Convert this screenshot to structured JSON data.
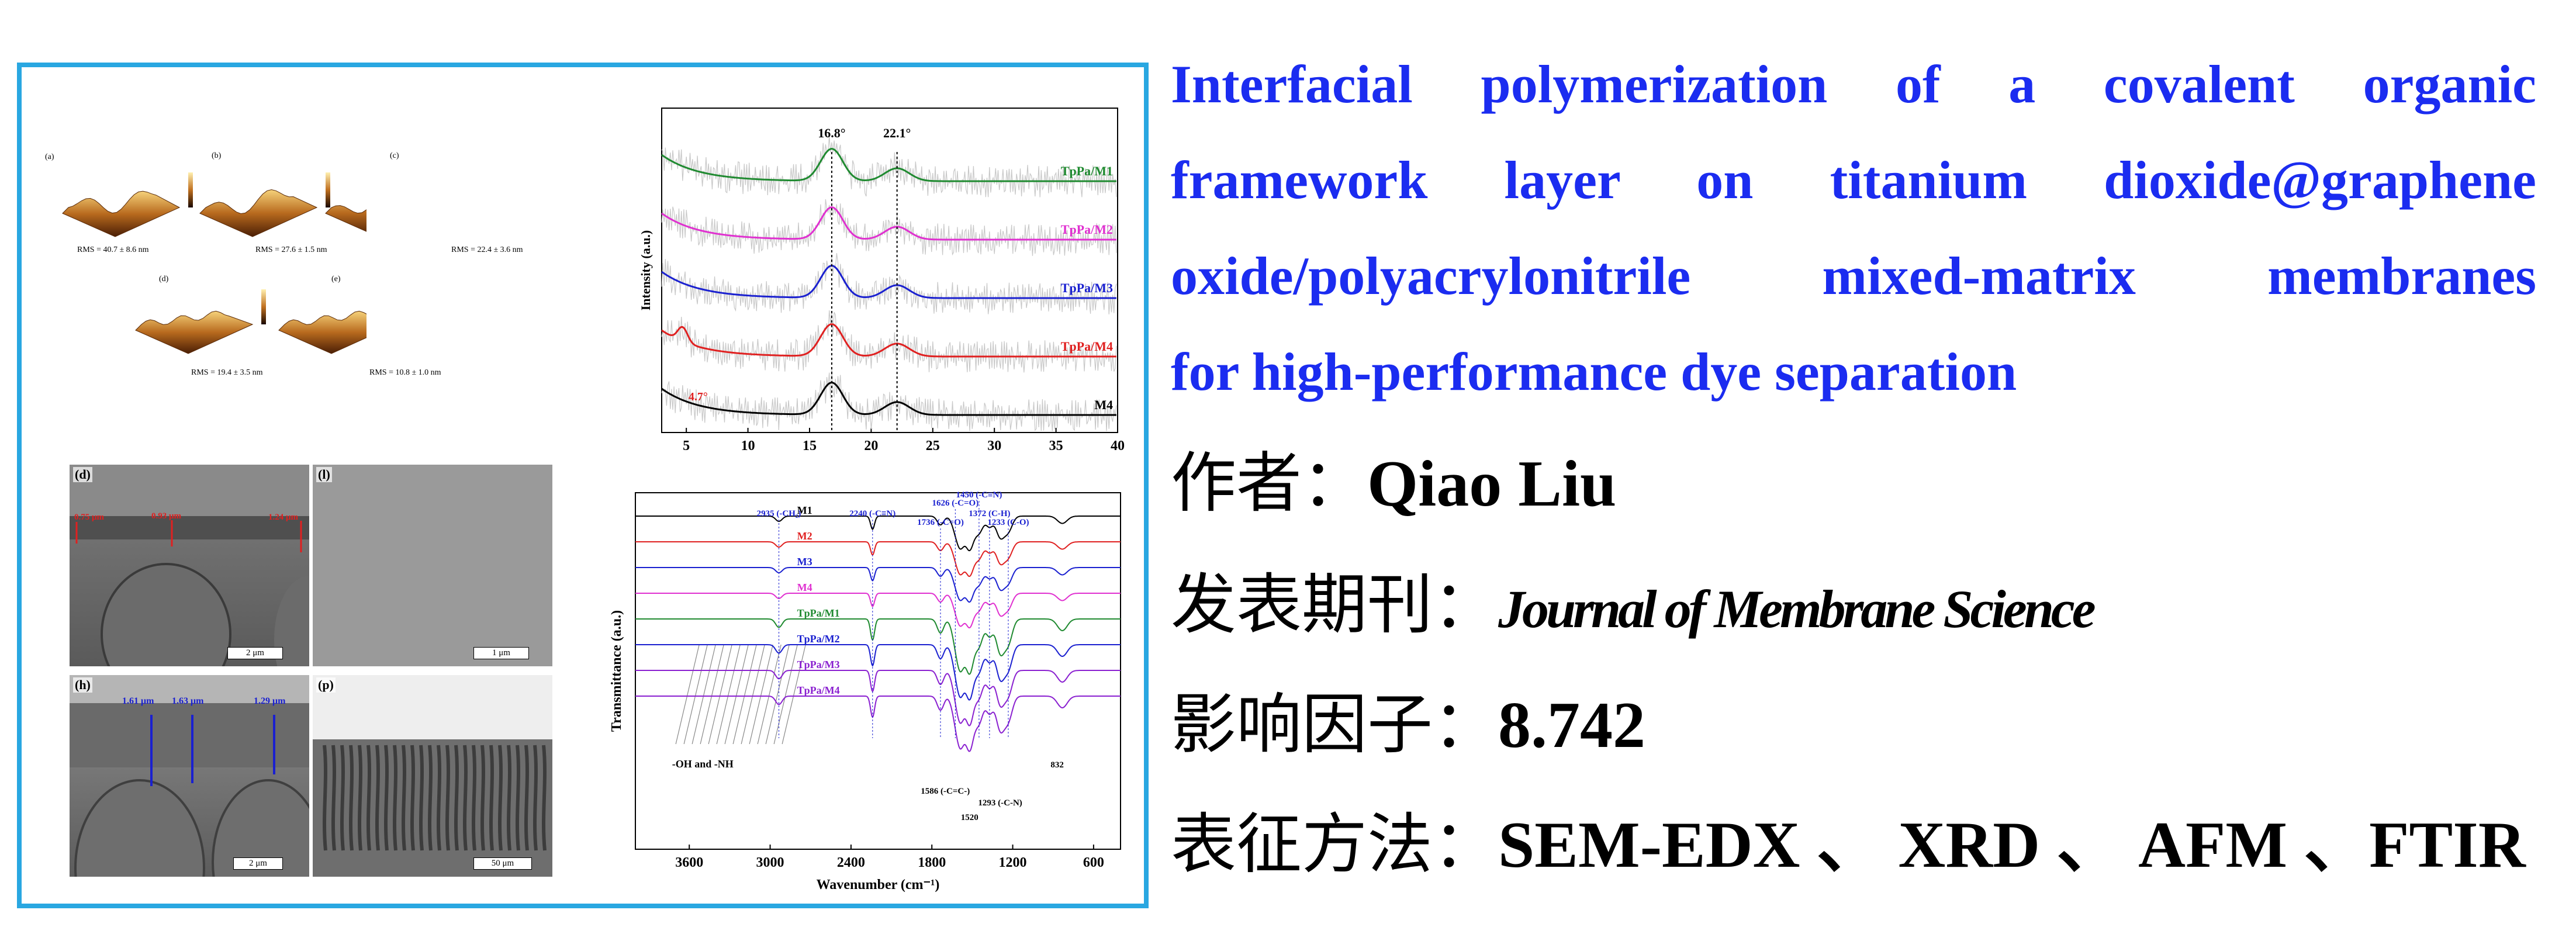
{
  "title": "Interfacial polymerization of a covalent organic framework layer on titanium dioxide@graphene oxide/polyacrylonitrile mixed-matrix membranes for high-performance dye separation",
  "title_lines": [
    "Interfacial polymerization of a covalent organic",
    "framework layer on titanium dioxide@graphene",
    "oxide/polyacrylonitrile mixed-matrix membranes",
    "for high-performance dye separation"
  ],
  "author": {
    "label": "作者：",
    "value": "Qiao Liu"
  },
  "journal": {
    "label": "发表期刊：",
    "value": "Journal of Membrane Science"
  },
  "impact_factor": {
    "label": "影响因子：",
    "value": "8.742"
  },
  "methods": {
    "label": "表征方法：",
    "value": "SEM-EDX 、 XRD 、 AFM 、FTIR"
  },
  "colors": {
    "title": "#1b2cf0",
    "frame": "#29a7e1",
    "black": "#000000",
    "red": "#e02020",
    "magenta": "#e030d0",
    "blue": "#1a20d0",
    "green": "#1f8a30",
    "purple": "#8a20d0"
  },
  "afm": {
    "panels": [
      {
        "label": "(a)",
        "rms": "RMS = 40.7 ± 8.6 nm"
      },
      {
        "label": "(b)",
        "rms": "RMS = 27.6 ± 1.5 nm"
      },
      {
        "label": "(c)",
        "rms": "RMS = 22.4 ± 3.6 nm"
      },
      {
        "label": "(d)",
        "rms": "RMS = 19.4 ± 3.5 nm"
      },
      {
        "label": "(e)",
        "rms": "RMS = 10.8 ± 1.0 nm"
      }
    ]
  },
  "sem": {
    "d": {
      "label": "(d)",
      "thick": [
        "0.75 μm",
        "0.93 μm",
        "1.24 μm"
      ],
      "scale": "2 μm"
    },
    "l": {
      "label": "(l)",
      "scale": "1 μm"
    },
    "h": {
      "label": "(h)",
      "thick": [
        "1.61 μm",
        "1.63 μm",
        "1.29 μm"
      ],
      "scale": "2 μm"
    },
    "p": {
      "label": "(p)",
      "scale": "50 μm"
    }
  },
  "chart_data": [
    {
      "type": "line",
      "ylabel": "Intensity (a.u.)",
      "xlim": [
        3,
        40
      ],
      "x_ticks": [
        5,
        10,
        15,
        20,
        25,
        30,
        35,
        40
      ],
      "annotations": [
        "16.8°",
        "22.1°",
        "4.7°"
      ],
      "peak_positions": [
        16.8,
        22.1,
        4.7
      ],
      "series": [
        {
          "name": "TpPa/M1",
          "color": "#1f8a30",
          "offset": 4
        },
        {
          "name": "TpPa/M2",
          "color": "#e030d0",
          "offset": 3
        },
        {
          "name": "TpPa/M3",
          "color": "#1a20d0",
          "offset": 2
        },
        {
          "name": "TpPa/M4",
          "color": "#e02020",
          "offset": 1
        },
        {
          "name": "M4",
          "color": "#000000",
          "offset": 0
        }
      ]
    },
    {
      "type": "line",
      "xlabel": "Wavenumber (cm⁻¹)",
      "ylabel": "Transmittance (a.u.)",
      "xlim": [
        4000,
        400
      ],
      "x_ticks": [
        3600,
        3000,
        2400,
        1800,
        1200,
        600
      ],
      "annotations": [
        "2935 (-CH₂)",
        "2240 (-C≡N)",
        "1736 (-C=O)",
        "1626 (-C=O)",
        "1450 (-C≡N)",
        "1372 (C-H)",
        "1233 (C-O)",
        "1586 (-C=C-)",
        "1520",
        "1293 (-C-N)",
        "832",
        "-OH and -NH"
      ],
      "series": [
        {
          "name": "M1",
          "color": "#000000"
        },
        {
          "name": "M2",
          "color": "#e02020"
        },
        {
          "name": "M3",
          "color": "#1a20d0"
        },
        {
          "name": "M4",
          "color": "#e030d0"
        },
        {
          "name": "TpPa/M1",
          "color": "#1f8a30"
        },
        {
          "name": "TpPa/M2",
          "color": "#1a20d0"
        },
        {
          "name": "TpPa/M3",
          "color": "#8a20d0"
        },
        {
          "name": "TpPa/M4",
          "color": "#8a20d0"
        }
      ]
    }
  ]
}
